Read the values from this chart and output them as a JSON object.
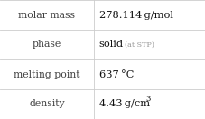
{
  "rows": [
    {
      "label": "molar mass",
      "value": "278.114 g/mol",
      "type": "simple"
    },
    {
      "label": "phase",
      "value": "solid",
      "suffix": "(at STP)",
      "type": "phase"
    },
    {
      "label": "melting point",
      "value": "637 °C",
      "type": "simple"
    },
    {
      "label": "density",
      "value": "4.43 g/cm",
      "superscript": "3",
      "type": "density"
    }
  ],
  "col_split": 0.455,
  "background_color": "#ffffff",
  "border_color": "#cccccc",
  "label_fontsize": 7.8,
  "value_fontsize": 8.2,
  "suffix_fontsize": 5.8,
  "super_fontsize": 6.0,
  "label_color": "#404040",
  "value_color": "#111111",
  "suffix_color": "#999999",
  "font_family": "DejaVu Serif"
}
